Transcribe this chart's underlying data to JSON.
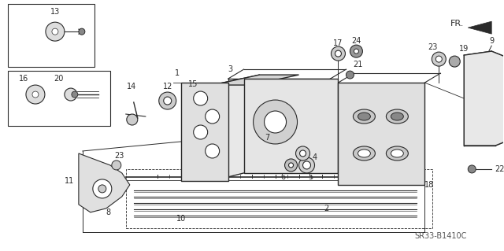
{
  "bg_color": "#ffffff",
  "line_color": "#2a2a2a",
  "figure_width": 6.4,
  "figure_height": 3.19,
  "dpi": 100,
  "watermark": "SR33-B1410C",
  "fr_label": "FR."
}
